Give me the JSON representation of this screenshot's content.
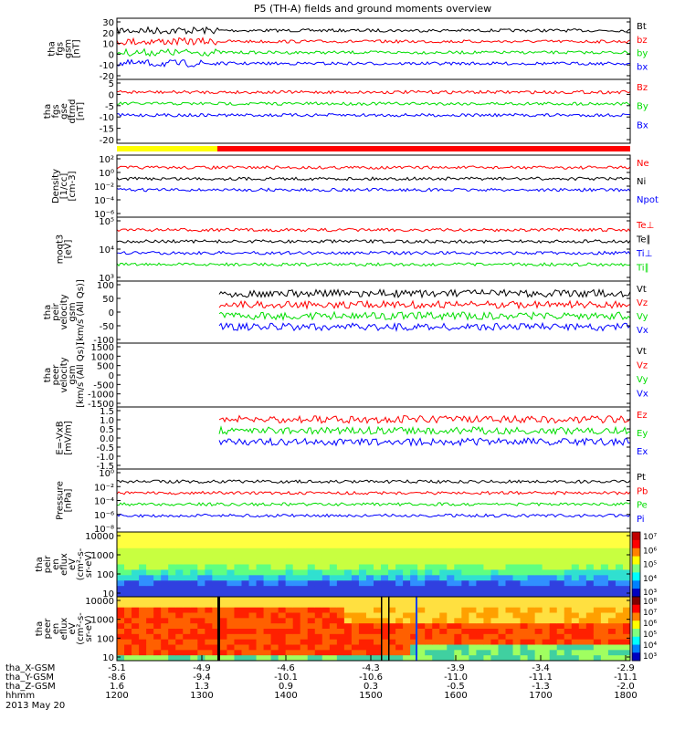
{
  "title": "P5 (TH-A) fields and ground moments overview",
  "date": "2013 May 20",
  "colors": {
    "black": "#000000",
    "red": "#ff0000",
    "green": "#00dd00",
    "blue": "#0000ff",
    "yellow": "#ffff00",
    "mode_red": "#ff0000"
  },
  "chart_data": [
    {
      "type": "line",
      "id": "fgs_gsm",
      "ylabel": [
        "tha",
        "fgs",
        "gsm",
        "[nT]"
      ],
      "yticks": [
        "30",
        "20",
        "10",
        "0",
        "-10",
        "-20"
      ],
      "ylim": [
        -25,
        32
      ],
      "legend": [
        {
          "label": "Bt",
          "color": "#000000"
        },
        {
          "label": "bz",
          "color": "#ff0000"
        },
        {
          "label": "by",
          "color": "#00dd00"
        },
        {
          "label": "bx",
          "color": "#0000ff"
        }
      ]
    },
    {
      "type": "line",
      "id": "fgs_gse_detrended",
      "ylabel": [
        "tha",
        "fgs",
        "gse",
        "dtrnd",
        "[nT]"
      ],
      "yticks": [
        "5",
        "0",
        "-5",
        "-10",
        "-15",
        "-20"
      ],
      "ylim": [
        -22,
        9
      ],
      "legend": [
        {
          "label": "Bz",
          "color": "#ff0000"
        },
        {
          "label": "By",
          "color": "#00dd00"
        },
        {
          "label": "Bx",
          "color": "#0000ff"
        }
      ]
    },
    {
      "type": "line",
      "id": "density",
      "yscale": "log",
      "ylabel": [
        "Density",
        "[1/cc]",
        "[cm-3]"
      ],
      "yticks": [
        "10²",
        "10⁰",
        "10⁻²",
        "10⁻⁴",
        "10⁻⁶"
      ],
      "legend": [
        {
          "label": "Ne",
          "color": "#ff0000"
        },
        {
          "label": "Ni",
          "color": "#000000"
        },
        {
          "label": "Npot",
          "color": "#0000ff"
        }
      ]
    },
    {
      "type": "line",
      "id": "temperature",
      "yscale": "log",
      "ylabel": [
        "moqt3",
        "[eV]"
      ],
      "yticks": [
        "10⁵",
        "10⁴",
        "10³"
      ],
      "legend": [
        {
          "label": "Te⊥",
          "color": "#ff0000"
        },
        {
          "label": "Te∥",
          "color": "#000000"
        },
        {
          "label": "Ti⊥",
          "color": "#0000ff"
        },
        {
          "label": "Ti∥",
          "color": "#00dd00"
        }
      ]
    },
    {
      "type": "line",
      "id": "peir_velocity",
      "ylabel": [
        "tha",
        "peir",
        "velocity",
        "gsm",
        "[km/s (All Qs)]"
      ],
      "yticks": [
        "100",
        "50",
        "0",
        "-50",
        "-100"
      ],
      "ylim": [
        -110,
        115
      ],
      "legend": [
        {
          "label": "Vt",
          "color": "#000000"
        },
        {
          "label": "Vz",
          "color": "#ff0000"
        },
        {
          "label": "Vy",
          "color": "#00dd00"
        },
        {
          "label": "Vx",
          "color": "#0000ff"
        }
      ]
    },
    {
      "type": "line",
      "id": "peer_velocity",
      "ylabel": [
        "tha",
        "peer",
        "velocity",
        "gsm",
        "[km/s (All Qs)]"
      ],
      "yticks": [
        "1500",
        "1000",
        "500",
        "0",
        "-500",
        "-1000",
        "-1500"
      ],
      "ylim": [
        -1600,
        1600
      ],
      "legend": [
        {
          "label": "Vt",
          "color": "#000000"
        },
        {
          "label": "Vz",
          "color": "#ff0000"
        },
        {
          "label": "Vy",
          "color": "#00dd00"
        },
        {
          "label": "Vx",
          "color": "#0000ff"
        }
      ]
    },
    {
      "type": "line",
      "id": "e_field",
      "ylabel": [
        "E=-VxB",
        "[mV/m]"
      ],
      "yticks": [
        "1.5",
        "1.0",
        "0.5",
        "0.0",
        "-0.5",
        "-1.0",
        "-1.5"
      ],
      "ylim": [
        -1.6,
        1.6
      ],
      "legend": [
        {
          "label": "Ez",
          "color": "#ff0000"
        },
        {
          "label": "Ey",
          "color": "#00dd00"
        },
        {
          "label": "Ex",
          "color": "#0000ff"
        }
      ]
    },
    {
      "type": "line",
      "id": "pressure",
      "yscale": "log",
      "ylabel": [
        "Pressure",
        "[nPa]"
      ],
      "yticks": [
        "10⁰",
        "10⁻²",
        "10⁻⁴",
        "10⁻⁶",
        "10⁻⁸"
      ],
      "legend": [
        {
          "label": "Pt",
          "color": "#000000"
        },
        {
          "label": "Pb",
          "color": "#ff0000"
        },
        {
          "label": "Pe",
          "color": "#00dd00"
        },
        {
          "label": "Pi",
          "color": "#0000ff"
        }
      ]
    },
    {
      "type": "heatmap",
      "id": "peir_en_eflux",
      "yscale": "log",
      "ylabel": [
        "tha",
        "peir",
        "en",
        "eflux",
        "eV",
        "(cm²-s-",
        "sr-eV)"
      ],
      "yticks": [
        "10000",
        "1000",
        "100",
        "10"
      ],
      "colorbar": [
        "10⁷",
        "10⁶",
        "10⁵",
        "10⁴",
        "10³"
      ]
    },
    {
      "type": "heatmap",
      "id": "peer_en_eflux",
      "yscale": "log",
      "ylabel": [
        "tha",
        "peer",
        "en",
        "eflux",
        "eV",
        "(cm²-s-",
        "sr-eV)"
      ],
      "yticks": [
        "10000",
        "1000",
        "100",
        "10"
      ],
      "colorbar": [
        "10⁸",
        "10⁷",
        "10⁶",
        "10⁵",
        "10⁴",
        "10³"
      ]
    }
  ],
  "xaxis": {
    "rows": [
      {
        "label": "tha_X-GSM",
        "values": [
          "-5.1",
          "-4.9",
          "-4.6",
          "-4.3",
          "-3.9",
          "-3.4",
          "-2.9"
        ]
      },
      {
        "label": "tha_Y-GSM",
        "values": [
          "-8.6",
          "-9.4",
          "-10.1",
          "-10.6",
          "-11.0",
          "-11.1",
          "-11.1"
        ]
      },
      {
        "label": "tha_Z-GSM",
        "values": [
          "1.6",
          "1.3",
          "0.9",
          "0.3",
          "-0.5",
          "-1.3",
          "-2.0"
        ]
      },
      {
        "label": "hhmm",
        "values": [
          "1200",
          "1300",
          "1400",
          "1500",
          "1600",
          "1700",
          "1800"
        ]
      }
    ]
  }
}
